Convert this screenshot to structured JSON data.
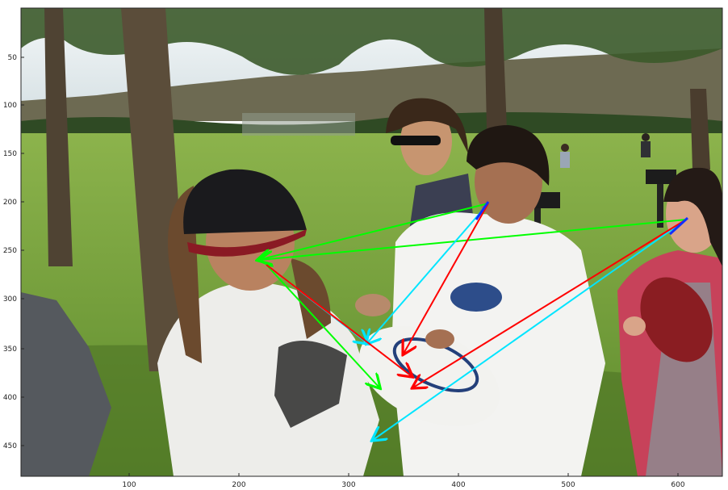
{
  "figure": {
    "x_ticks": [
      "100",
      "200",
      "300",
      "400",
      "500",
      "600"
    ],
    "y_ticks": [
      "50",
      "100",
      "150",
      "200",
      "250",
      "300",
      "350",
      "400",
      "450"
    ]
  },
  "scene": {
    "description_colors": {
      "sky": "#e8eef0",
      "grass": "#6f9a3a",
      "grass_light": "#8fb04a",
      "tree_trunk": "#5a4a38",
      "foliage": "#2e4a22"
    },
    "people": [
      {
        "name": "person-beanie-left"
      },
      {
        "name": "person-sunglasses"
      },
      {
        "name": "boy-white-shirt"
      },
      {
        "name": "girl-pink-jacket"
      },
      {
        "name": "person-gray-shirt-edge"
      }
    ],
    "objects": [
      "frisbee",
      "football"
    ]
  },
  "gaze_arrows": {
    "colors": {
      "green": "#00ff00",
      "cyan": "#00e5ff",
      "red": "#ff0000",
      "blue": "#1030ff"
    }
  }
}
